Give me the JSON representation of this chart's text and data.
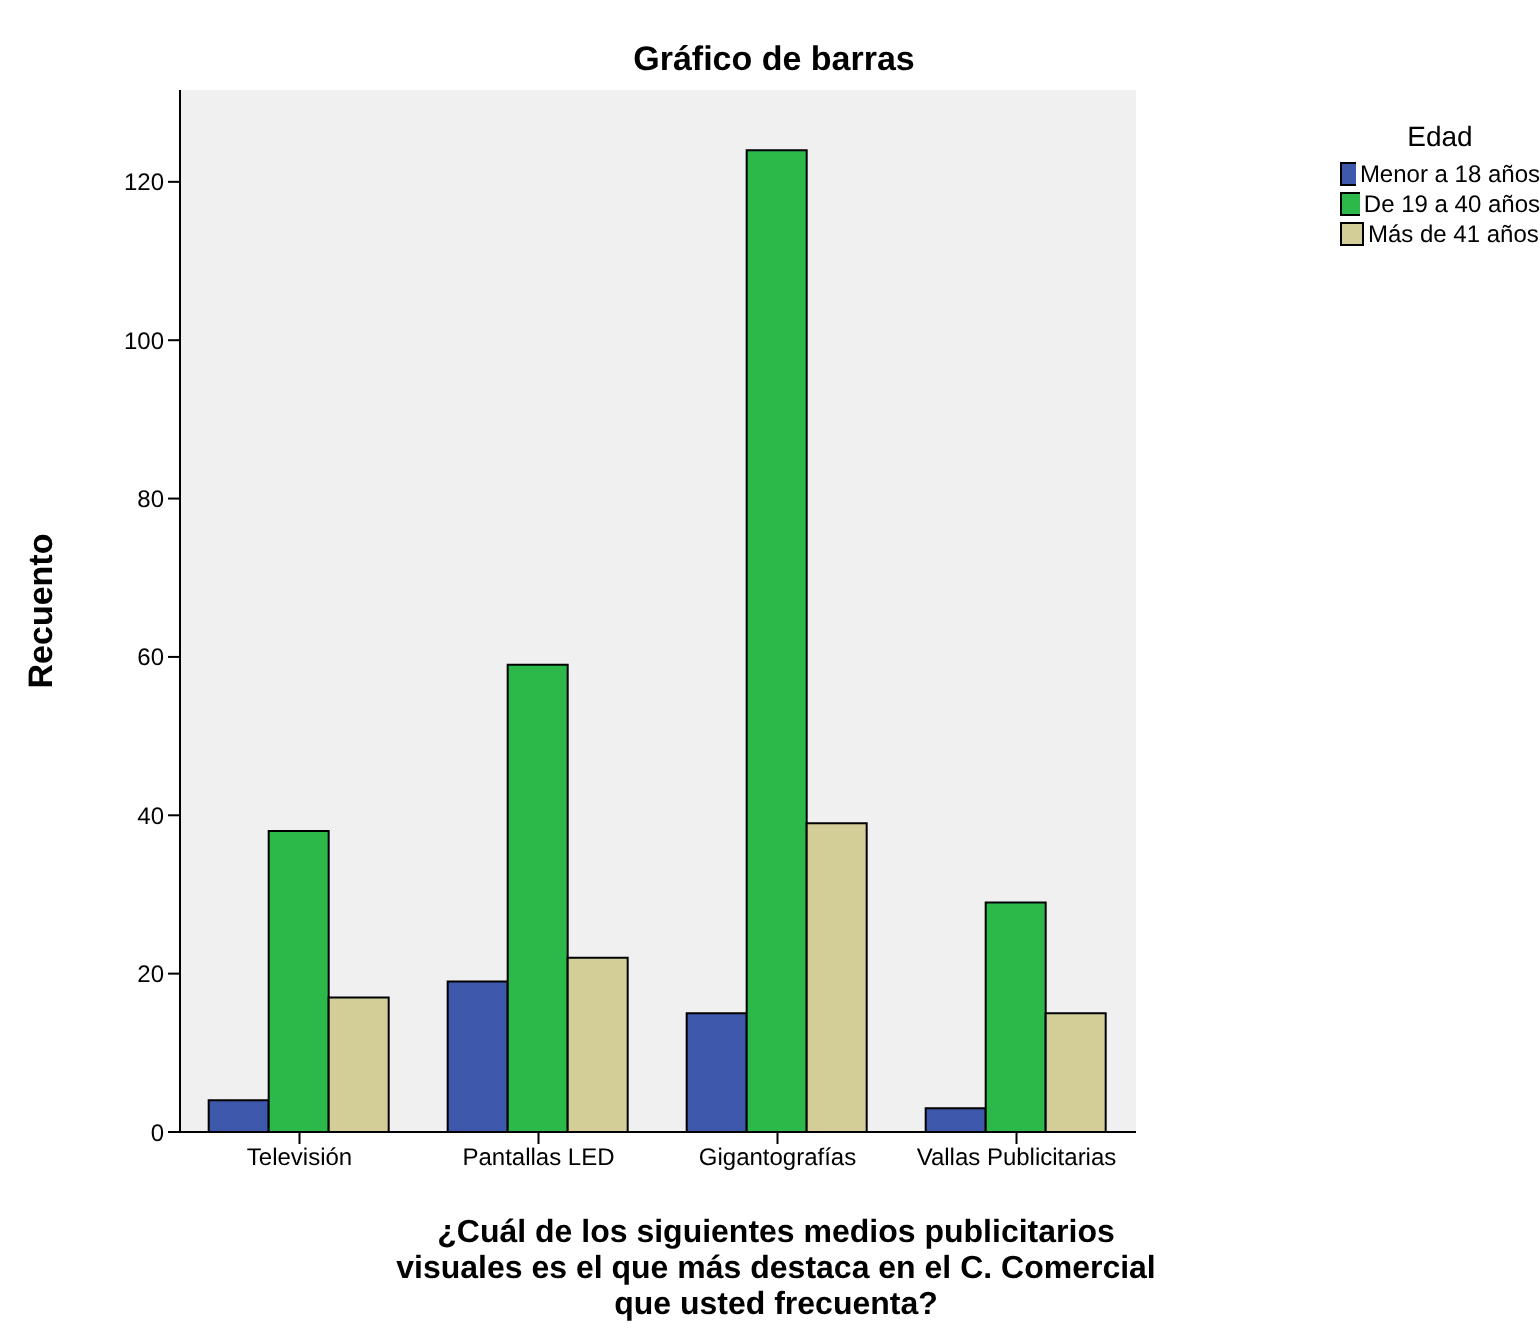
{
  "chart_data": {
    "type": "bar",
    "title": "Gráfico de barras",
    "xlabel": "¿Cuál de los siguientes medios publicitarios visuales es el que más destaca en el C. Comercial que usted frecuenta?",
    "ylabel": "Recuento",
    "legend_title": "Edad",
    "categories": [
      "Televisión",
      "Pantallas LED",
      "Gigantografías",
      "Vallas Publicitarias"
    ],
    "series": [
      {
        "name": "Menor a 18 años",
        "color": "#3e58ac",
        "values": [
          4,
          19,
          15,
          3
        ]
      },
      {
        "name": "De 19 a 40 años",
        "color": "#2db84a",
        "values": [
          38,
          59,
          124,
          29
        ]
      },
      {
        "name": "Más de 41 años",
        "color": "#d3ce97",
        "values": [
          17,
          22,
          39,
          15
        ]
      }
    ],
    "ylim": [
      0,
      131.6
    ],
    "yticks": [
      0,
      20,
      40,
      60,
      80,
      100,
      120
    ],
    "grid": false,
    "legend": "top right"
  }
}
